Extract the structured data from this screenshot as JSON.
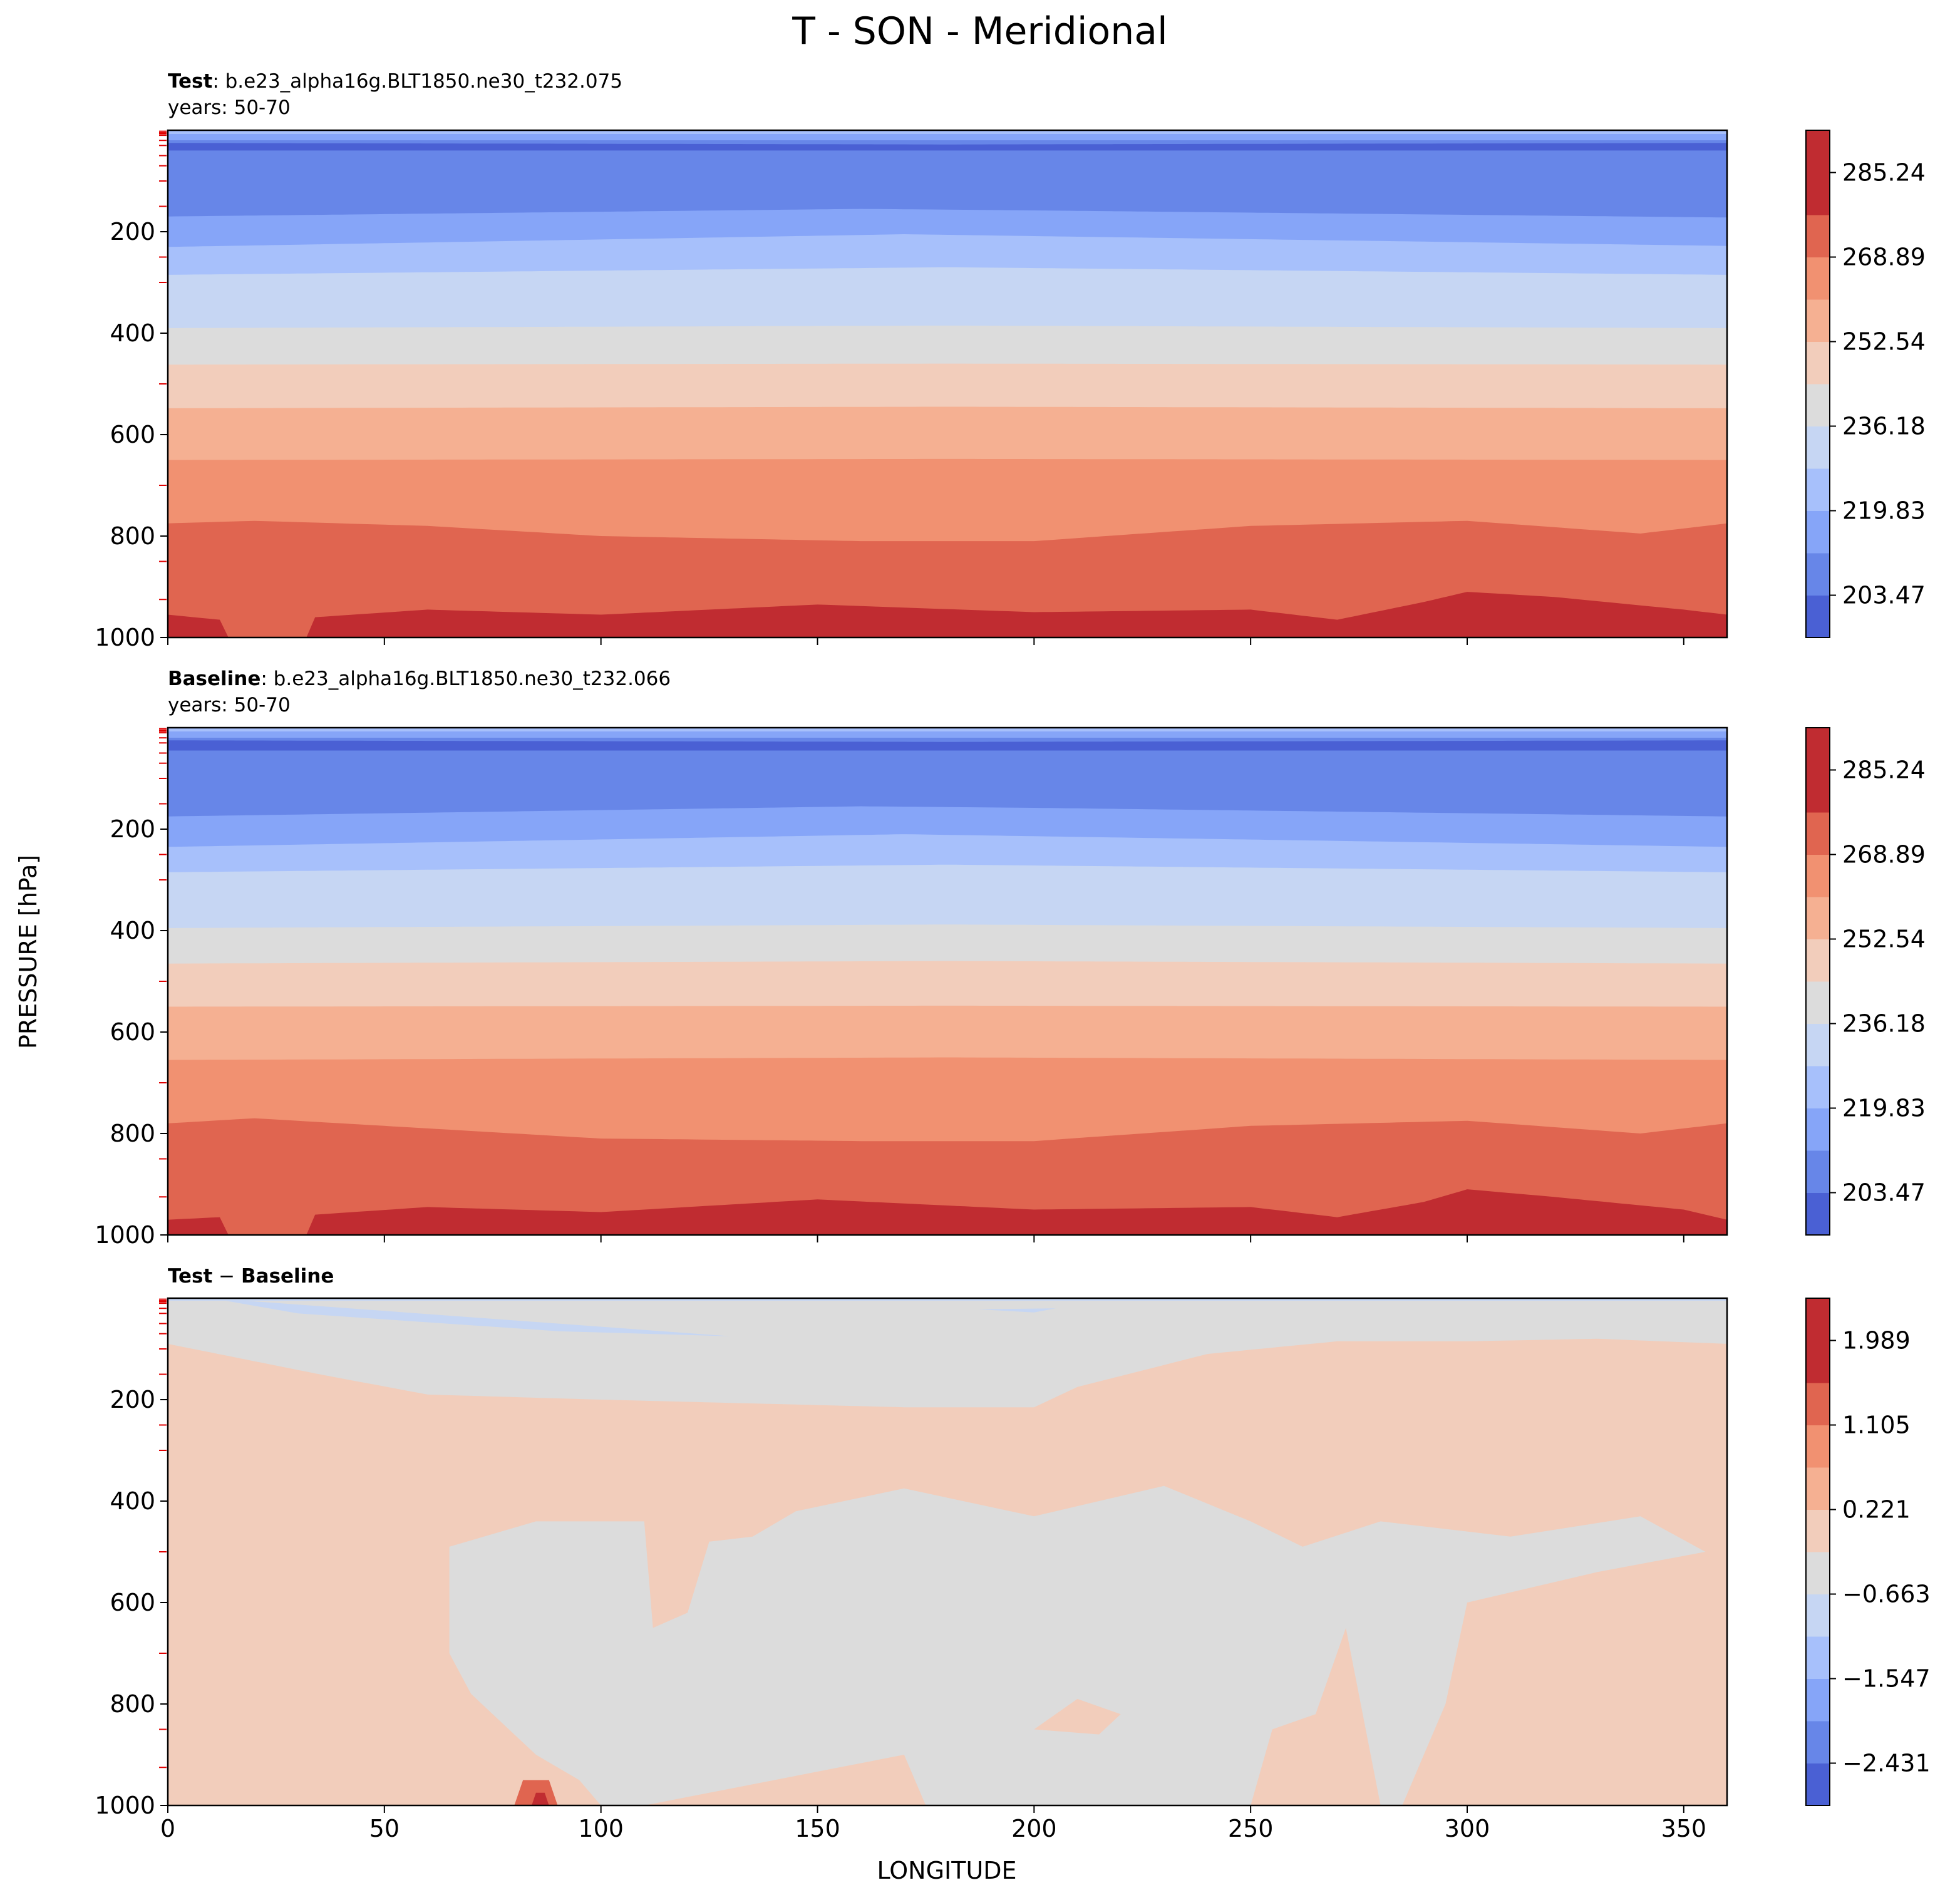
{
  "figure": {
    "title": "T - SON - Meridional",
    "xlabel": "LONGITUDE",
    "ylabel": "PRESSURE [hPa]"
  },
  "colors": {
    "full_levels": [
      "#4a60d4",
      "#6786e8",
      "#86a5f8",
      "#a7c0fb",
      "#c6d6f3",
      "#dcdcdc",
      "#f2cdbb",
      "#f5b092",
      "#f19171",
      "#e06550",
      "#c02c31"
    ],
    "diff_levels": [
      "#4a60d4",
      "#6786e8",
      "#86a5f8",
      "#a7c0fb",
      "#c6d6f3",
      "#dcdcdc",
      "#f2cdbb",
      "#f5b092",
      "#f19171",
      "#e06550",
      "#c02c31"
    ]
  },
  "panels": [
    {
      "title_bold": "Test",
      "title_rest": ": b.e23_alpha16g.BLT1850.ne30_t232.075",
      "subtitle": "years: 50-70",
      "colorbar_ticks": [
        "285.24",
        "268.89",
        "252.54",
        "236.18",
        "219.83",
        "203.47"
      ]
    },
    {
      "title_bold": "Baseline",
      "title_rest": ": b.e23_alpha16g.BLT1850.ne30_t232.066",
      "subtitle": "years: 50-70",
      "colorbar_ticks": [
        "285.24",
        "268.89",
        "252.54",
        "236.18",
        "219.83",
        "203.47"
      ]
    },
    {
      "title_bold": "Test",
      "title_op": " − ",
      "title_bold2": "Baseline",
      "colorbar_ticks": [
        "1.989",
        "1.105",
        "0.221",
        "−0.663",
        "−1.547",
        "−2.431"
      ]
    }
  ],
  "chart_data": {
    "type": "filled-contour",
    "x": {
      "label": "LONGITUDE",
      "lim": [
        0,
        360
      ],
      "ticks": [
        0,
        50,
        100,
        150,
        200,
        250,
        300,
        350
      ]
    },
    "y": {
      "label": "PRESSURE [hPa]",
      "lim": [
        1000,
        0
      ],
      "ticks": [
        200,
        400,
        600,
        800,
        1000
      ],
      "inverted": true
    },
    "panels": [
      {
        "name": "Test",
        "units": "K",
        "levels": [
          203.47,
          211.65,
          219.83,
          228.0,
          236.18,
          244.36,
          252.54,
          260.71,
          268.89,
          277.07,
          285.24,
          293.42
        ],
        "band_boundaries": [
          {
            "lower_level": 211.65,
            "pressure_by_lon": [
              [
                0,
                25
              ],
              [
                180,
                28
              ],
              [
                360,
                25
              ]
            ]
          },
          {
            "lower_level": 219.83,
            "pressure_by_lon": [
              [
                0,
                40
              ],
              [
                360,
                40
              ]
            ]
          },
          {
            "lower_level": 228.0,
            "pressure_by_lon": [
              [
                0,
                170
              ],
              [
                160,
                155
              ],
              [
                200,
                158
              ],
              [
                360,
                172
              ]
            ]
          },
          {
            "lower_level": 236.18,
            "pressure_by_lon": [
              [
                0,
                230
              ],
              [
                170,
                205
              ],
              [
                360,
                228
              ]
            ]
          },
          {
            "lower_level": 244.36,
            "pressure_by_lon": [
              [
                0,
                285
              ],
              [
                180,
                270
              ],
              [
                360,
                285
              ]
            ]
          },
          {
            "lower_level": 252.54,
            "pressure_by_lon": [
              [
                0,
                390
              ],
              [
                180,
                385
              ],
              [
                360,
                390
              ]
            ]
          },
          {
            "lower_level": 260.71,
            "pressure_by_lon": [
              [
                0,
                462
              ],
              [
                180,
                460
              ],
              [
                360,
                462
              ]
            ]
          },
          {
            "lower_level": 268.89,
            "pressure_by_lon": [
              [
                0,
                548
              ],
              [
                180,
                545
              ],
              [
                360,
                548
              ]
            ]
          },
          {
            "lower_level": 277.07,
            "pressure_by_lon": [
              [
                0,
                650
              ],
              [
                180,
                648
              ],
              [
                360,
                650
              ]
            ]
          },
          {
            "lower_level": 285.24,
            "pressure_by_lon": [
              [
                0,
                775
              ],
              [
                20,
                770
              ],
              [
                60,
                780
              ],
              [
                100,
                800
              ],
              [
                160,
                810
              ],
              [
                200,
                810
              ],
              [
                250,
                780
              ],
              [
                300,
                770
              ],
              [
                340,
                795
              ],
              [
                360,
                775
              ]
            ]
          },
          {
            "lower_level": 293.42,
            "pressure_by_lon": [
              [
                0,
                955
              ],
              [
                12,
                965
              ],
              [
                13,
                1000
              ],
              [
                33,
                1000
              ],
              [
                34,
                960
              ],
              [
                60,
                945
              ],
              [
                100,
                955
              ],
              [
                150,
                935
              ],
              [
                200,
                950
              ],
              [
                250,
                945
              ],
              [
                270,
                965
              ],
              [
                290,
                930
              ],
              [
                300,
                910
              ],
              [
                320,
                920
              ],
              [
                350,
                945
              ],
              [
                360,
                955
              ]
            ]
          }
        ]
      },
      {
        "name": "Baseline",
        "units": "K",
        "levels": [
          203.47,
          211.65,
          219.83,
          228.0,
          236.18,
          244.36,
          252.54,
          260.71,
          268.89,
          277.07,
          285.24,
          293.42
        ],
        "band_boundaries": [
          {
            "lower_level": 211.65,
            "pressure_by_lon": [
              [
                0,
                25
              ],
              [
                180,
                28
              ],
              [
                360,
                25
              ]
            ]
          },
          {
            "lower_level": 219.83,
            "pressure_by_lon": [
              [
                0,
                45
              ],
              [
                360,
                45
              ]
            ]
          },
          {
            "lower_level": 228.0,
            "pressure_by_lon": [
              [
                0,
                175
              ],
              [
                160,
                155
              ],
              [
                200,
                158
              ],
              [
                360,
                175
              ]
            ]
          },
          {
            "lower_level": 236.18,
            "pressure_by_lon": [
              [
                0,
                235
              ],
              [
                170,
                210
              ],
              [
                360,
                235
              ]
            ]
          },
          {
            "lower_level": 244.36,
            "pressure_by_lon": [
              [
                0,
                285
              ],
              [
                180,
                270
              ],
              [
                360,
                285
              ]
            ]
          },
          {
            "lower_level": 252.54,
            "pressure_by_lon": [
              [
                0,
                395
              ],
              [
                180,
                388
              ],
              [
                360,
                395
              ]
            ]
          },
          {
            "lower_level": 260.71,
            "pressure_by_lon": [
              [
                0,
                465
              ],
              [
                180,
                460
              ],
              [
                360,
                465
              ]
            ]
          },
          {
            "lower_level": 268.89,
            "pressure_by_lon": [
              [
                0,
                550
              ],
              [
                180,
                548
              ],
              [
                360,
                550
              ]
            ]
          },
          {
            "lower_level": 277.07,
            "pressure_by_lon": [
              [
                0,
                655
              ],
              [
                180,
                650
              ],
              [
                360,
                655
              ]
            ]
          },
          {
            "lower_level": 285.24,
            "pressure_by_lon": [
              [
                0,
                780
              ],
              [
                20,
                770
              ],
              [
                60,
                790
              ],
              [
                100,
                810
              ],
              [
                160,
                815
              ],
              [
                200,
                815
              ],
              [
                250,
                785
              ],
              [
                300,
                775
              ],
              [
                340,
                800
              ],
              [
                360,
                780
              ]
            ]
          },
          {
            "lower_level": 293.42,
            "pressure_by_lon": [
              [
                0,
                970
              ],
              [
                12,
                965
              ],
              [
                13,
                1000
              ],
              [
                33,
                1000
              ],
              [
                34,
                960
              ],
              [
                60,
                945
              ],
              [
                100,
                955
              ],
              [
                150,
                930
              ],
              [
                200,
                950
              ],
              [
                250,
                945
              ],
              [
                270,
                965
              ],
              [
                290,
                935
              ],
              [
                300,
                910
              ],
              [
                320,
                925
              ],
              [
                350,
                950
              ],
              [
                360,
                970
              ]
            ]
          }
        ]
      },
      {
        "name": "Test − Baseline",
        "units": "K",
        "levels": [
          -2.431,
          -1.989,
          -1.547,
          -1.105,
          -0.663,
          -0.221,
          0.221,
          0.663,
          1.105,
          1.547,
          1.989,
          2.431
        ],
        "regions": [
          {
            "value": 0.44,
            "description": "warm band below ~100-200 hPa",
            "boundary_by_lon": [
              [
                0,
                90
              ],
              [
                35,
                150
              ],
              [
                60,
                190
              ],
              [
                100,
                200
              ],
              [
                170,
                215
              ],
              [
                200,
                215
              ],
              [
                210,
                175
              ],
              [
                240,
                110
              ],
              [
                270,
                85
              ],
              [
                300,
                85
              ],
              [
                330,
                80
              ],
              [
                360,
                90
              ]
            ]
          },
          {
            "value": 0.0,
            "description": "neutral region 400-1000 hPa, centre",
            "outline": [
              [
                65,
                490
              ],
              [
                85,
                440
              ],
              [
                110,
                440
              ],
              [
                112,
                650
              ],
              [
                120,
                620
              ],
              [
                125,
                480
              ],
              [
                135,
                470
              ],
              [
                145,
                420
              ],
              [
                170,
                375
              ],
              [
                200,
                430
              ],
              [
                230,
                370
              ],
              [
                250,
                440
              ],
              [
                262,
                490
              ],
              [
                280,
                440
              ],
              [
                310,
                470
              ],
              [
                340,
                430
              ],
              [
                355,
                500
              ],
              [
                330,
                540
              ],
              [
                300,
                600
              ],
              [
                295,
                800
              ],
              [
                290,
                900
              ],
              [
                285,
                1000
              ],
              [
                175,
                1000
              ],
              [
                170,
                900
              ],
              [
                110,
                1000
              ],
              [
                100,
                1000
              ],
              [
                95,
                950
              ],
              [
                85,
                900
              ],
              [
                70,
                780
              ],
              [
                65,
                700
              ]
            ]
          },
          {
            "value": -0.44,
            "description": "weak cold patch near top",
            "outline": [
              [
                10,
                0
              ],
              [
                130,
                75
              ],
              [
                90,
                65
              ],
              [
                30,
                30
              ]
            ]
          },
          {
            "value": 1.5,
            "description": "warm spot near surface ~85 lon",
            "outline": [
              [
                82,
                950
              ],
              [
                88,
                950
              ],
              [
                90,
                1000
              ],
              [
                80,
                1000
              ]
            ]
          }
        ]
      }
    ]
  }
}
